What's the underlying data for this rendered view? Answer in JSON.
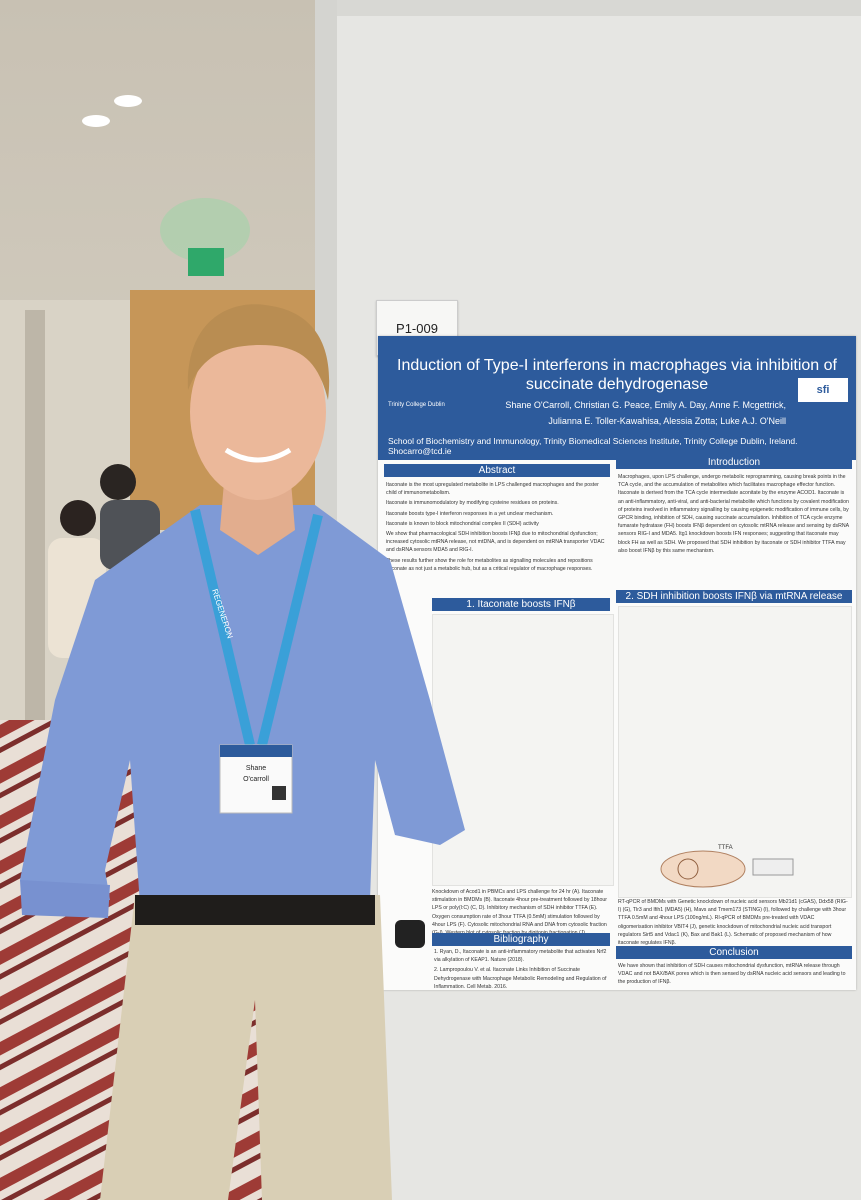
{
  "board_label": "P1-009",
  "poster": {
    "title": "Induction of Type-I interferons in macrophages via inhibition of succinate dehydrogenase",
    "authors_line1": "Shane O'Carroll, Christian G. Peace, Emily A. Day, Anne F. Mcgettrick,",
    "authors_line2": "Julianna E. Toller-Kawahisa, Alessia Zotta; Luke A.J. O'Neill",
    "affiliation": "School of Biochemistry and Immunology, Trinity Biomedical Sciences Institute, Trinity College Dublin, Ireland. Shocarro@tcd.ie",
    "logo_left": "Trinity College Dublin",
    "logo_right": "sfi",
    "abstract": {
      "heading": "Abstract",
      "bullets": [
        "Itaconate is the most upregulated metabolite in LPS challenged macrophages and the poster child of immunometabolism.",
        "Itaconate is immunomodulatory by modifying cysteine residues on proteins.",
        "Itaconate boosts type-I interferon responses in a yet unclear mechanism.",
        "Itaconate is known to block mitochondrial complex II (SDH) activity",
        "We show that pharmacological SDH inhibition boosts IFNβ due to mitochondrial dysfunction; increased cytosolic mtRNA release, not mtDNA, and is dependent on mtRNA transporter VDAC and dsRNA sensors MDA5 and RIG-I.",
        "These results further show the role for metabolites as signalling molecules and repositions itaconate as not just a metabolic hub, but as a critical regulator of macrophage responses."
      ]
    },
    "introduction": {
      "heading": "Introduction",
      "text": "Macrophages, upon LPS challenge, undergo metabolic reprogramming, causing break points in the TCA cycle, and the accumulation of metabolites which facilitates macrophage effector function. Itaconate is derived from the TCA cycle intermediate aconitate by the enzyme ACOD1. Itaconate is an anti-inflammatory, anti-viral, and anti-bacterial metabolite which functions by covalent modification of proteins involved in inflammatory signalling by causing epigenetic modification of immune cells, by GPCR binding, inhibition of SDH, causing succinate accumulation. Inhibition of TCA cycle enzyme fumarate hydratase (FH) boosts IFNβ dependent on cytosolic mtRNA release and sensing by dsRNA sensors RIG-I and MDA5. Itg1 knockdown boosts IFN responses; suggesting that itaconate may block FH as well as SDH. We proposed that SDH inhibition by itaconate or SDH inhibitor TTFA may also boost IFNβ by this same mechanism."
    },
    "section1": {
      "heading": "1. Itaconate boosts IFNβ",
      "caption": "Knockdown of Acod1 in PBMCs and LPS challenge for 24 hr (A). Itaconate stimulation in BMDMs (B). Itaconate 4hour pre-treatment followed by 18hour LPS or poly(I:C) (C, D). Inhibitory mechanism of SDH inhibitor TTFA (E). Oxygen consumption rate of 3hour TTFA (0.5mM) stimulation followed by 4hour LPS (F). Cytosolic mitochondrial RNA and DNA from cytosolic fraction (G-I). Western blot of cytosolic fraction by digitonin fractionation (J)."
    },
    "section2": {
      "heading": "2. SDH inhibition boosts IFNβ via mtRNA release",
      "caption": "RT-qPCR of BMDMs with Genetic knockdown of nucleic acid sensors Mb21d1 (cGAS), Ddx58 (RIG-I) (G), Tlr3 and Ifih1 (MDA5) (H), Mavs and Tmem173 (STING) (I), followed by challenge with 3hour TTFA 0.5mM and 4hour LPS (100ng/mL). RI-qPCR of BMDMs pre-treated with VDAC oligomerisation inhibitor VBIT4 (J), genetic knockdown of mitochondrial nucleic acid transport regulators Sirt5 and Vdac1 (K), Bax and Bak1 (L). Schematic of proposed mechanism of how itaconate regulates IFNβ.",
      "diagram_label": "TTFA"
    },
    "bibliography": {
      "heading": "Bibliography",
      "items": [
        "1. Ryan, D., Itaconate is an anti-inflammatory metabolite that activates Nrf2 via alkylation of KEAP1. Nature (2018).",
        "2. Lampropoulou V. et al. Itaconate Links Inhibition of Succinate Dehydrogenase with Macrophage Metabolic Remodeling and Regulation of Inflammation. Cell Metab. 2016.",
        "3. Hooftman, A., Peace, C.G., Ryan, D.G. et al. Macrophage fumarate hydratase restrains mtRNA-mediated interferon production. Nature (2023)."
      ]
    },
    "conclusion": {
      "heading": "Conclusion",
      "text": "We have shown that inhibition of SDH causes mitochondrial dysfunction, mtRNA release through VDAC and not BAX/BAK pores which is then sensed by dsRNA nucleic acid sensors and leading to the production of IFNβ."
    }
  },
  "lanyard_text": "REGENERON",
  "badge": {
    "first_name": "Shane",
    "last_name": "O'carroll"
  }
}
